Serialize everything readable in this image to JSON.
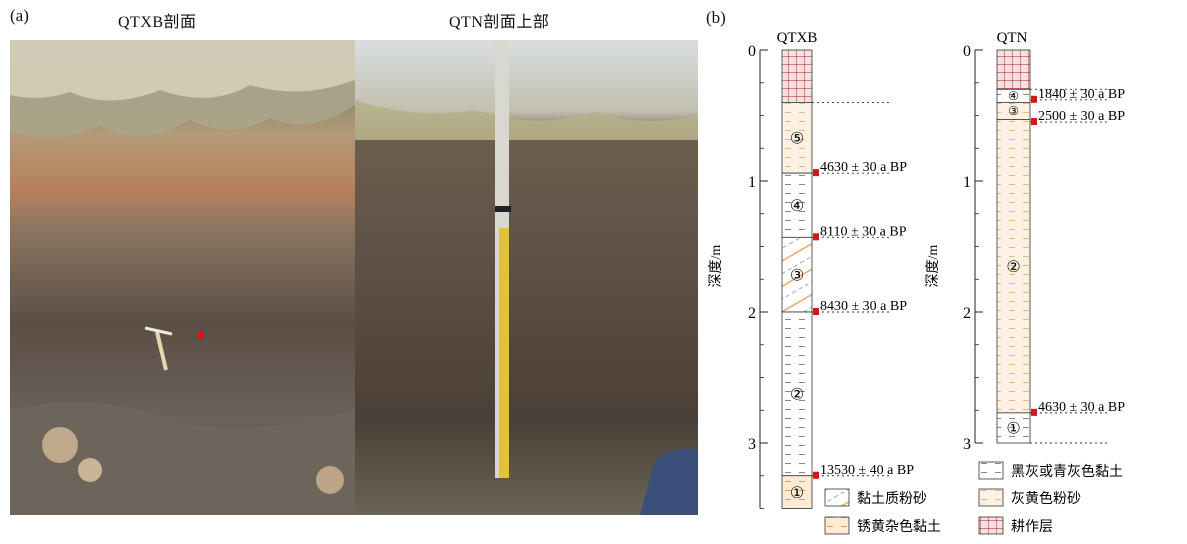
{
  "panel_a": {
    "label": "(a)",
    "photo_left_title": "QTXB剖面",
    "photo_right_title": "QTN剖面上部"
  },
  "panel_b": {
    "label": "(b)",
    "y_axis_label": "深度/m",
    "y_ticks": [
      "0",
      "1",
      "2",
      "3"
    ],
    "columns": [
      {
        "name": "QTXB",
        "layers": [
          {
            "top_m": 0.0,
            "bottom_m": 0.4,
            "lithology": "耕作层",
            "marker": ""
          },
          {
            "top_m": 0.4,
            "bottom_m": 0.94,
            "lithology": "灰黄色粉砂",
            "marker": "⑤"
          },
          {
            "top_m": 0.94,
            "bottom_m": 1.43,
            "lithology": "黑灰或青灰色黏土",
            "marker": "④"
          },
          {
            "top_m": 1.43,
            "bottom_m": 2.0,
            "lithology": "黏土质粉砂",
            "marker": "③"
          },
          {
            "top_m": 2.0,
            "bottom_m": 3.25,
            "lithology": "黑灰或青灰色黏土",
            "marker": "②"
          },
          {
            "top_m": 3.25,
            "bottom_m": 3.5,
            "lithology": "锈黄杂色黏土",
            "marker": "①"
          }
        ],
        "dates": [
          {
            "depth_m": 0.94,
            "label": "4630 ± 30 a BP"
          },
          {
            "depth_m": 1.43,
            "label": "8110 ± 30 a BP"
          },
          {
            "depth_m": 2.0,
            "label": "8430 ± 30 a BP"
          },
          {
            "depth_m": 3.25,
            "label": "13530 ± 40 a BP"
          }
        ]
      },
      {
        "name": "QTN",
        "layers": [
          {
            "top_m": 0.0,
            "bottom_m": 0.3,
            "lithology": "耕作层",
            "marker": ""
          },
          {
            "top_m": 0.3,
            "bottom_m": 0.4,
            "lithology": "黑灰或青灰色黏土",
            "marker": "④"
          },
          {
            "top_m": 0.4,
            "bottom_m": 0.53,
            "lithology": "灰黄色粉砂",
            "marker": "③"
          },
          {
            "top_m": 0.53,
            "bottom_m": 2.77,
            "lithology": "灰黄色粉砂",
            "marker": "②"
          },
          {
            "top_m": 2.77,
            "bottom_m": 3.0,
            "lithology": "黑灰或青灰色黏土",
            "marker": "①"
          }
        ],
        "dates": [
          {
            "depth_m": 0.38,
            "label": "1840 ± 30 a BP"
          },
          {
            "depth_m": 0.55,
            "label": "2500 ± 30 a BP"
          },
          {
            "depth_m": 2.77,
            "label": "4630 ± 30 a BP"
          }
        ]
      }
    ],
    "legend": [
      {
        "key": "clay",
        "label": "黑灰或青灰色黏土"
      },
      {
        "key": "clayey_silt",
        "label": "黏土质粉砂"
      },
      {
        "key": "silt",
        "label": "灰黄色粉砂"
      },
      {
        "key": "mottled_clay",
        "label": "锈黄杂色黏土"
      },
      {
        "key": "plough",
        "label": "耕作层"
      }
    ]
  }
}
